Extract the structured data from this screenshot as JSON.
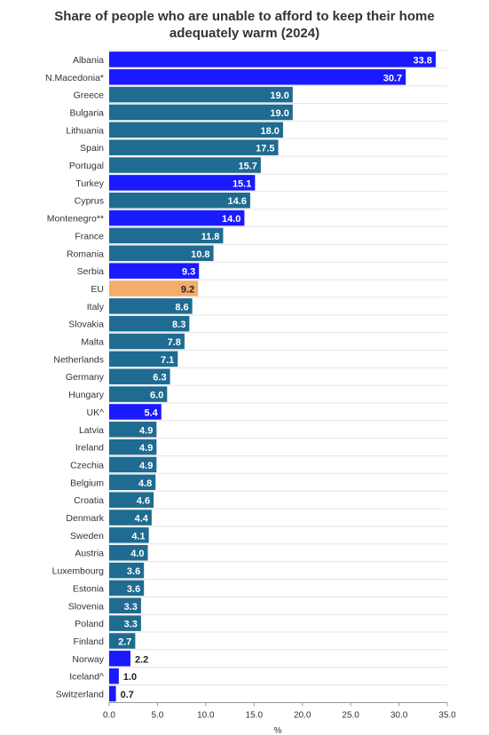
{
  "chart_data": {
    "type": "bar",
    "orientation": "horizontal",
    "title_lines": [
      "Share of people who are unable to afford to keep their home",
      "adequately warm (2024)"
    ],
    "xlabel": "%",
    "xlim": [
      0,
      35
    ],
    "xticks": [
      "0.0",
      "5.0",
      "10.0",
      "15.0",
      "20.0",
      "25.0",
      "30.0",
      "35.0"
    ],
    "grid": true,
    "colors": {
      "eu_member": "#1f6b91",
      "non_eu": "#1a1aff",
      "eu_average": "#f4ac6b"
    },
    "bars": [
      {
        "label": "Albania",
        "value": 33.8,
        "group": "non_eu"
      },
      {
        "label": "N.Macedonia*",
        "value": 30.7,
        "group": "non_eu"
      },
      {
        "label": "Greece",
        "value": 19.0,
        "group": "eu_member"
      },
      {
        "label": "Bulgaria",
        "value": 19.0,
        "group": "eu_member"
      },
      {
        "label": "Lithuania",
        "value": 18.0,
        "group": "eu_member"
      },
      {
        "label": "Spain",
        "value": 17.5,
        "group": "eu_member"
      },
      {
        "label": "Portugal",
        "value": 15.7,
        "group": "eu_member"
      },
      {
        "label": "Turkey",
        "value": 15.1,
        "group": "non_eu"
      },
      {
        "label": "Cyprus",
        "value": 14.6,
        "group": "eu_member"
      },
      {
        "label": "Montenegro**",
        "value": 14.0,
        "group": "non_eu"
      },
      {
        "label": "France",
        "value": 11.8,
        "group": "eu_member"
      },
      {
        "label": "Romania",
        "value": 10.8,
        "group": "eu_member"
      },
      {
        "label": "Serbia",
        "value": 9.3,
        "group": "non_eu"
      },
      {
        "label": "EU",
        "value": 9.2,
        "group": "eu_average"
      },
      {
        "label": "Italy",
        "value": 8.6,
        "group": "eu_member"
      },
      {
        "label": "Slovakia",
        "value": 8.3,
        "group": "eu_member"
      },
      {
        "label": "Malta",
        "value": 7.8,
        "group": "eu_member"
      },
      {
        "label": "Netherlands",
        "value": 7.1,
        "group": "eu_member"
      },
      {
        "label": "Germany",
        "value": 6.3,
        "group": "eu_member"
      },
      {
        "label": "Hungary",
        "value": 6.0,
        "group": "eu_member"
      },
      {
        "label": "UK^",
        "value": 5.4,
        "group": "non_eu"
      },
      {
        "label": "Latvia",
        "value": 4.9,
        "group": "eu_member"
      },
      {
        "label": "Ireland",
        "value": 4.9,
        "group": "eu_member"
      },
      {
        "label": "Czechia",
        "value": 4.9,
        "group": "eu_member"
      },
      {
        "label": "Belgium",
        "value": 4.8,
        "group": "eu_member"
      },
      {
        "label": "Croatia",
        "value": 4.6,
        "group": "eu_member"
      },
      {
        "label": "Denmark",
        "value": 4.4,
        "group": "eu_member"
      },
      {
        "label": "Sweden",
        "value": 4.1,
        "group": "eu_member"
      },
      {
        "label": "Austria",
        "value": 4.0,
        "group": "eu_member"
      },
      {
        "label": "Luxembourg",
        "value": 3.6,
        "group": "eu_member"
      },
      {
        "label": "Estonia",
        "value": 3.6,
        "group": "eu_member"
      },
      {
        "label": "Slovenia",
        "value": 3.3,
        "group": "eu_member"
      },
      {
        "label": "Poland",
        "value": 3.3,
        "group": "eu_member"
      },
      {
        "label": "Finland",
        "value": 2.7,
        "group": "eu_member"
      },
      {
        "label": "Norway",
        "value": 2.2,
        "group": "non_eu"
      },
      {
        "label": "Iceland^",
        "value": 1.0,
        "group": "non_eu"
      },
      {
        "label": "Switzerland",
        "value": 0.7,
        "group": "non_eu"
      }
    ]
  }
}
